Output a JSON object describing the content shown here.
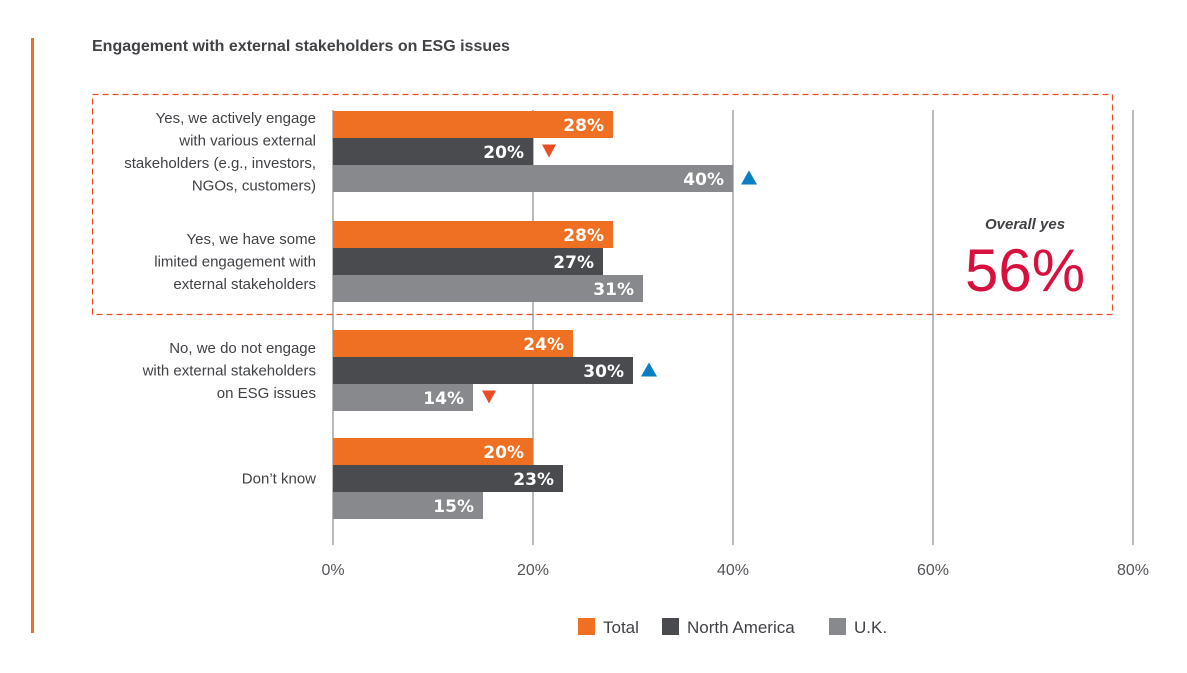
{
  "title": "Engagement with external stakeholders on ESG issues",
  "overall": {
    "caption": "Overall yes",
    "value": "56%",
    "color": "#d7103e"
  },
  "colors": {
    "Total": "#f07023",
    "North America": "#4a4b4e",
    "U.K.": "#88898c",
    "up": "#0a7ec2",
    "down": "#ea4c23",
    "highlight_box": "#ea4c23",
    "grid": "#8a8b8e"
  },
  "chart_data": {
    "type": "bar",
    "orientation": "horizontal",
    "title": "Engagement with external stakeholders on ESG issues",
    "xlabel": "",
    "ylabel": "",
    "xlim": [
      0,
      80
    ],
    "xticks": [
      0,
      20,
      40,
      60,
      80
    ],
    "xtick_labels": [
      "0%",
      "20%",
      "40%",
      "60%",
      "80%"
    ],
    "grid": true,
    "legend_position": "bottom-center",
    "categories": [
      {
        "label_lines": [
          "Yes, we actively engage",
          "with various external",
          "stakeholders (e.g., investors,",
          "NGOs, customers)"
        ]
      },
      {
        "label_lines": [
          "Yes, we have some",
          "limited engagement with",
          "external stakeholders"
        ]
      },
      {
        "label_lines": [
          "No, we do not engage",
          "with external stakeholders",
          "on ESG issues"
        ]
      },
      {
        "label_lines": [
          "Don’t know"
        ]
      }
    ],
    "series": [
      {
        "name": "Total",
        "values": [
          28,
          28,
          24,
          20
        ],
        "labels": [
          "28%",
          "28%",
          "24%",
          "20%"
        ]
      },
      {
        "name": "North America",
        "values": [
          20,
          27,
          30,
          23
        ],
        "labels": [
          "20%",
          "27%",
          "30%",
          "23%"
        ]
      },
      {
        "name": "U.K.",
        "values": [
          40,
          31,
          14,
          15
        ],
        "labels": [
          "40%",
          "31%",
          "14%",
          "15%"
        ]
      }
    ],
    "significance_markers": [
      {
        "category": 0,
        "series": "North America",
        "direction": "down"
      },
      {
        "category": 0,
        "series": "U.K.",
        "direction": "up"
      },
      {
        "category": 2,
        "series": "North America",
        "direction": "up"
      },
      {
        "category": 2,
        "series": "U.K.",
        "direction": "down"
      }
    ],
    "highlight": {
      "categories": [
        0,
        1
      ],
      "annotation": "Overall yes",
      "annotation_value": "56%"
    },
    "legend": [
      "Total",
      "North America",
      "U.K."
    ]
  }
}
